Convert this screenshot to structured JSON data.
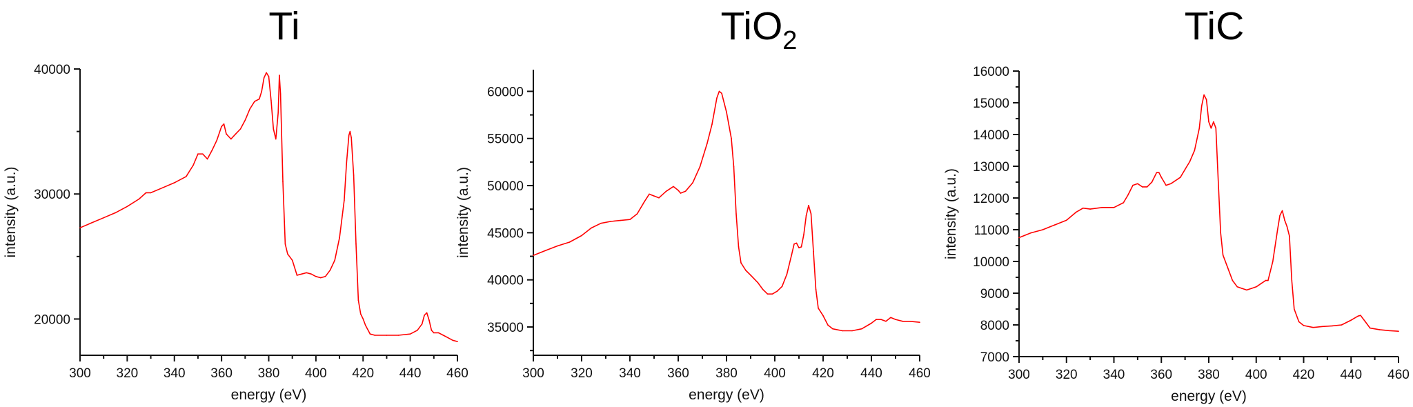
{
  "chart_data": [
    {
      "type": "line",
      "title": "Ti",
      "title_subscript": "",
      "xlabel": "energy (eV)",
      "ylabel": "intensity (a.u.)",
      "xlim": [
        300,
        460
      ],
      "ylim": [
        17100,
        40000
      ],
      "xticks": [
        "300",
        "320",
        "340",
        "360",
        "380",
        "400",
        "420",
        "440",
        "460"
      ],
      "yticks": [
        "20000",
        "30000",
        "40000"
      ],
      "ytick_values": [
        20000,
        30000,
        40000
      ],
      "yminor": 5000,
      "grid": false,
      "series_color": "#ff0000",
      "points": [
        [
          300,
          27300
        ],
        [
          305,
          27700
        ],
        [
          310,
          28100
        ],
        [
          315,
          28500
        ],
        [
          320,
          29000
        ],
        [
          325,
          29600
        ],
        [
          328,
          30100
        ],
        [
          330,
          30100
        ],
        [
          335,
          30500
        ],
        [
          340,
          30900
        ],
        [
          345,
          31400
        ],
        [
          348,
          32300
        ],
        [
          350,
          33200
        ],
        [
          352,
          33200
        ],
        [
          354,
          32800
        ],
        [
          356,
          33500
        ],
        [
          358,
          34300
        ],
        [
          360,
          35400
        ],
        [
          361,
          35600
        ],
        [
          362,
          34800
        ],
        [
          364,
          34400
        ],
        [
          366,
          34800
        ],
        [
          368,
          35200
        ],
        [
          370,
          35900
        ],
        [
          372,
          36800
        ],
        [
          374,
          37400
        ],
        [
          376,
          37600
        ],
        [
          377,
          38200
        ],
        [
          378,
          39300
        ],
        [
          379,
          39700
        ],
        [
          380,
          39400
        ],
        [
          381,
          37500
        ],
        [
          382,
          35200
        ],
        [
          383,
          34400
        ],
        [
          384,
          36500
        ],
        [
          384.5,
          39500
        ],
        [
          385,
          38000
        ],
        [
          386,
          31000
        ],
        [
          387,
          26000
        ],
        [
          388,
          25200
        ],
        [
          390,
          24700
        ],
        [
          392,
          23500
        ],
        [
          394,
          23600
        ],
        [
          396,
          23700
        ],
        [
          398,
          23600
        ],
        [
          400,
          23400
        ],
        [
          402,
          23300
        ],
        [
          404,
          23400
        ],
        [
          406,
          23900
        ],
        [
          408,
          24700
        ],
        [
          410,
          26500
        ],
        [
          412,
          29500
        ],
        [
          413,
          32500
        ],
        [
          414,
          34700
        ],
        [
          414.5,
          35000
        ],
        [
          415,
          34500
        ],
        [
          416,
          31500
        ],
        [
          417,
          26000
        ],
        [
          418,
          21500
        ],
        [
          419,
          20400
        ],
        [
          420,
          20000
        ],
        [
          421,
          19500
        ],
        [
          423,
          18800
        ],
        [
          425,
          18700
        ],
        [
          430,
          18700
        ],
        [
          435,
          18700
        ],
        [
          440,
          18800
        ],
        [
          443,
          19100
        ],
        [
          445,
          19600
        ],
        [
          446,
          20300
        ],
        [
          447,
          20500
        ],
        [
          448,
          19900
        ],
        [
          449,
          19100
        ],
        [
          450,
          18900
        ],
        [
          452,
          18900
        ],
        [
          454,
          18700
        ],
        [
          456,
          18500
        ],
        [
          458,
          18300
        ],
        [
          460,
          18200
        ]
      ]
    },
    {
      "type": "line",
      "title": "TiO",
      "title_subscript": "2",
      "xlabel": "energy (eV)",
      "ylabel": "intensity (a.u.)",
      "xlim": [
        300,
        460
      ],
      "ylim": [
        32000,
        62300
      ],
      "xticks": [
        "300",
        "320",
        "340",
        "360",
        "380",
        "400",
        "420",
        "440",
        "460"
      ],
      "yticks": [
        "35000",
        "40000",
        "45000",
        "50000",
        "55000",
        "60000"
      ],
      "ytick_values": [
        35000,
        40000,
        45000,
        50000,
        55000,
        60000
      ],
      "yminor": 2500,
      "grid": false,
      "series_color": "#ff0000",
      "points": [
        [
          300,
          42600
        ],
        [
          305,
          43100
        ],
        [
          310,
          43600
        ],
        [
          315,
          44000
        ],
        [
          320,
          44700
        ],
        [
          324,
          45500
        ],
        [
          328,
          46000
        ],
        [
          332,
          46200
        ],
        [
          336,
          46300
        ],
        [
          340,
          46400
        ],
        [
          343,
          47000
        ],
        [
          346,
          48300
        ],
        [
          348,
          49100
        ],
        [
          350,
          48900
        ],
        [
          352,
          48700
        ],
        [
          355,
          49400
        ],
        [
          358,
          49900
        ],
        [
          360,
          49500
        ],
        [
          361,
          49200
        ],
        [
          363,
          49400
        ],
        [
          366,
          50300
        ],
        [
          369,
          52000
        ],
        [
          372,
          54500
        ],
        [
          374,
          56500
        ],
        [
          376,
          59300
        ],
        [
          377,
          60000
        ],
        [
          378,
          59800
        ],
        [
          380,
          57800
        ],
        [
          382,
          55000
        ],
        [
          383,
          52000
        ],
        [
          384,
          47000
        ],
        [
          385,
          43500
        ],
        [
          386,
          41800
        ],
        [
          388,
          41000
        ],
        [
          390,
          40500
        ],
        [
          393,
          39700
        ],
        [
          395,
          39000
        ],
        [
          397,
          38500
        ],
        [
          399,
          38500
        ],
        [
          401,
          38800
        ],
        [
          403,
          39300
        ],
        [
          405,
          40600
        ],
        [
          407,
          42700
        ],
        [
          408,
          43800
        ],
        [
          409,
          43900
        ],
        [
          410,
          43400
        ],
        [
          411,
          43500
        ],
        [
          412,
          44800
        ],
        [
          413,
          46800
        ],
        [
          414,
          47900
        ],
        [
          415,
          47000
        ],
        [
          416,
          43000
        ],
        [
          417,
          39000
        ],
        [
          418,
          37000
        ],
        [
          420,
          36200
        ],
        [
          422,
          35200
        ],
        [
          424,
          34800
        ],
        [
          428,
          34600
        ],
        [
          432,
          34600
        ],
        [
          436,
          34800
        ],
        [
          440,
          35400
        ],
        [
          442,
          35800
        ],
        [
          444,
          35800
        ],
        [
          446,
          35600
        ],
        [
          448,
          36000
        ],
        [
          450,
          35800
        ],
        [
          453,
          35600
        ],
        [
          456,
          35600
        ],
        [
          460,
          35500
        ]
      ]
    },
    {
      "type": "line",
      "title": "TiC",
      "title_subscript": "",
      "xlabel": "energy (eV)",
      "ylabel": "intensity (a.u.)",
      "xlim": [
        300,
        460
      ],
      "ylim": [
        7000,
        16000
      ],
      "xticks": [
        "300",
        "320",
        "340",
        "360",
        "380",
        "400",
        "420",
        "440",
        "460"
      ],
      "yticks": [
        "7000",
        "8000",
        "9000",
        "10000",
        "11000",
        "12000",
        "13000",
        "14000",
        "15000",
        "16000"
      ],
      "ytick_values": [
        7000,
        8000,
        9000,
        10000,
        11000,
        12000,
        13000,
        14000,
        15000,
        16000
      ],
      "yminor": 500,
      "grid": false,
      "series_color": "#ff0000",
      "points": [
        [
          300,
          10750
        ],
        [
          305,
          10900
        ],
        [
          310,
          11000
        ],
        [
          315,
          11150
        ],
        [
          320,
          11300
        ],
        [
          324,
          11550
        ],
        [
          327,
          11680
        ],
        [
          330,
          11650
        ],
        [
          335,
          11700
        ],
        [
          340,
          11700
        ],
        [
          344,
          11850
        ],
        [
          346,
          12100
        ],
        [
          348,
          12400
        ],
        [
          350,
          12450
        ],
        [
          352,
          12350
        ],
        [
          354,
          12350
        ],
        [
          356,
          12500
        ],
        [
          358,
          12800
        ],
        [
          359,
          12800
        ],
        [
          360,
          12650
        ],
        [
          362,
          12400
        ],
        [
          364,
          12450
        ],
        [
          366,
          12550
        ],
        [
          368,
          12650
        ],
        [
          370,
          12900
        ],
        [
          372,
          13150
        ],
        [
          374,
          13500
        ],
        [
          376,
          14200
        ],
        [
          377,
          14900
        ],
        [
          378,
          15250
        ],
        [
          379,
          15100
        ],
        [
          380,
          14400
        ],
        [
          381,
          14200
        ],
        [
          382,
          14400
        ],
        [
          383,
          14200
        ],
        [
          384,
          12500
        ],
        [
          385,
          10900
        ],
        [
          386,
          10200
        ],
        [
          388,
          9800
        ],
        [
          390,
          9400
        ],
        [
          392,
          9200
        ],
        [
          394,
          9150
        ],
        [
          396,
          9100
        ],
        [
          398,
          9150
        ],
        [
          400,
          9200
        ],
        [
          402,
          9300
        ],
        [
          404,
          9400
        ],
        [
          405,
          9400
        ],
        [
          407,
          10000
        ],
        [
          409,
          11000
        ],
        [
          410,
          11450
        ],
        [
          411,
          11600
        ],
        [
          412,
          11300
        ],
        [
          413,
          11100
        ],
        [
          414,
          10800
        ],
        [
          415,
          9400
        ],
        [
          416,
          8500
        ],
        [
          418,
          8100
        ],
        [
          420,
          7980
        ],
        [
          424,
          7920
        ],
        [
          428,
          7950
        ],
        [
          432,
          7970
        ],
        [
          436,
          8000
        ],
        [
          440,
          8150
        ],
        [
          443,
          8280
        ],
        [
          444,
          8300
        ],
        [
          446,
          8100
        ],
        [
          448,
          7900
        ],
        [
          452,
          7850
        ],
        [
          456,
          7820
        ],
        [
          460,
          7800
        ]
      ]
    }
  ]
}
